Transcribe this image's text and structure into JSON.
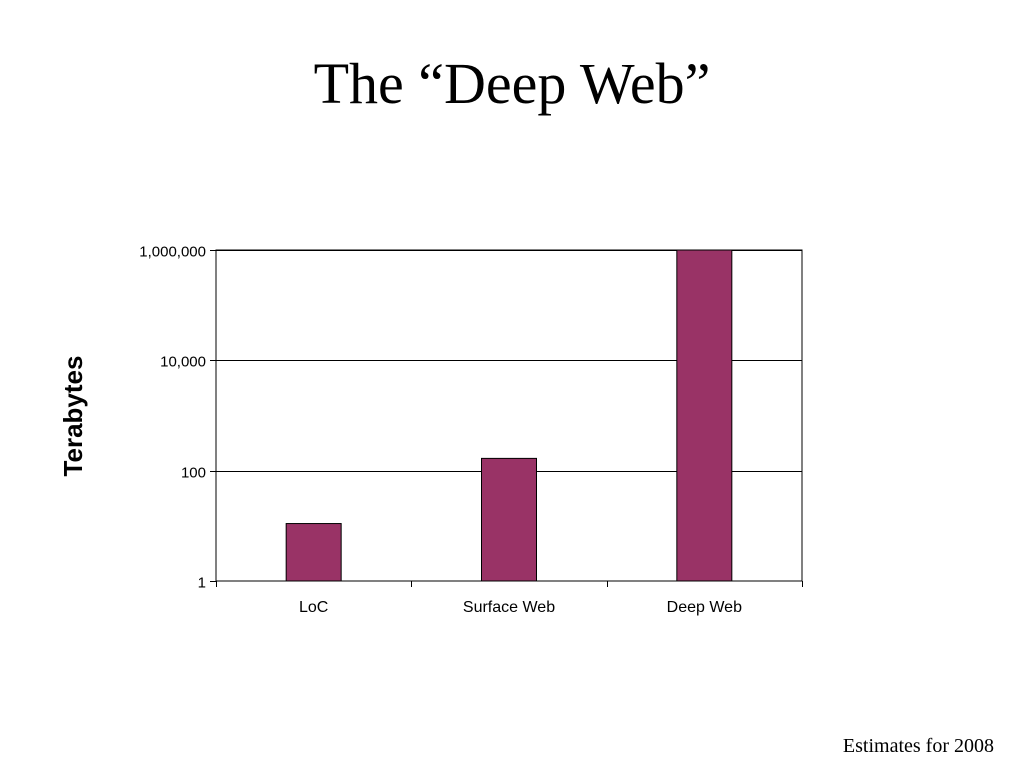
{
  "slide": {
    "title": "The “Deep Web”",
    "footnote": "Estimates for 2008"
  },
  "chart_data": {
    "type": "bar",
    "categories": [
      "LoC",
      "Surface Web",
      "Deep Web"
    ],
    "values": [
      11,
      167,
      1000000
    ],
    "ylabel": "Terabytes",
    "xlabel": "",
    "yscale": "log",
    "ylim": [
      1,
      1000000
    ],
    "yticks": [
      1,
      100,
      10000,
      1000000
    ],
    "ytick_labels": [
      "1",
      "100",
      "10,000",
      "1,000,000"
    ],
    "grid": true,
    "legend": "none",
    "bar_color": "#993366"
  }
}
